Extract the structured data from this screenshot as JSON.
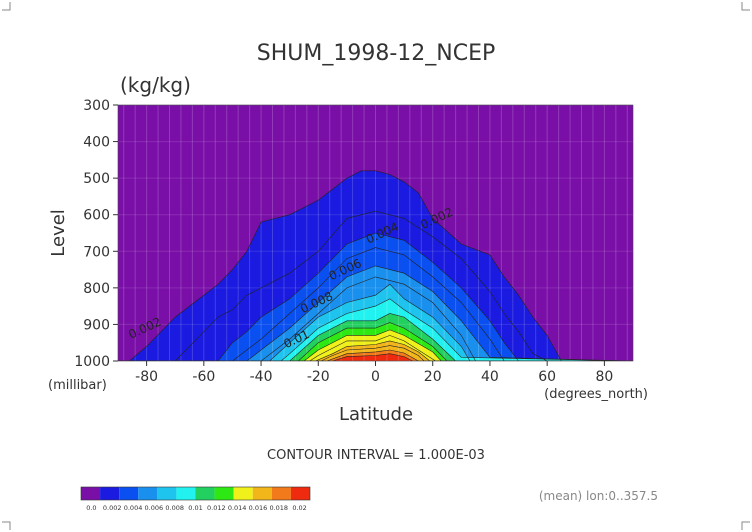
{
  "chart_data": {
    "type": "filled-contour",
    "title": "SHUM_1998-12_NCEP",
    "units": "(kg/kg)",
    "xlabel": "Latitude",
    "ylabel": "Level",
    "x_units": "(degrees_north)",
    "y_units": "(millibar)",
    "x_range": [
      -90,
      90
    ],
    "y_range": [
      1000,
      300
    ],
    "y_scale": "linear, inverted",
    "x_ticks": [
      -80,
      -60,
      -40,
      -20,
      0,
      20,
      40,
      60,
      80
    ],
    "y_ticks": [
      300,
      400,
      500,
      600,
      700,
      800,
      900,
      1000
    ],
    "contour_interval_text": "CONTOUR INTERVAL = 1.000E-03",
    "mean_note": "(mean) lon:0..357.5",
    "contour_labels": [
      {
        "text": "0.002",
        "lat": -80,
        "p": 920
      },
      {
        "text": "0.002",
        "lat": 22,
        "p": 620
      },
      {
        "text": "0.004",
        "lat": 3,
        "p": 660
      },
      {
        "text": "0.006",
        "lat": -10,
        "p": 760
      },
      {
        "text": "0.008",
        "lat": -20,
        "p": 850
      },
      {
        "text": "0.01",
        "lat": -27,
        "p": 950
      }
    ],
    "levels": [
      0.002,
      0.003,
      0.004,
      0.005,
      0.006,
      0.007,
      0.008,
      0.009,
      0.01,
      0.011,
      0.012,
      0.013,
      0.014,
      0.015,
      0.016,
      0.017,
      0.018
    ],
    "legend": {
      "boundaries": [
        "0.0",
        "0.002",
        "0.004",
        "0.006",
        "0.008",
        "0.01",
        "0.012",
        "0.014",
        "0.016",
        "0.018",
        "0.02"
      ],
      "colors": [
        "#7a0fa8",
        "#1a1ae0",
        "#0a4fef",
        "#1a90ee",
        "#1ec4ee",
        "#22f2ef",
        "#22d060",
        "#2ee813",
        "#f0f01a",
        "#f2b61a",
        "#f27a1a",
        "#ee2a0f"
      ]
    },
    "profiles": [
      {
        "threshold": 0.002,
        "lat": [
          -90,
          -86,
          -80,
          -75,
          -70,
          -65,
          -60,
          -55,
          -50,
          -45,
          -40,
          -30,
          -20,
          -15,
          -10,
          -5,
          0,
          5,
          10,
          15,
          20,
          30,
          40,
          45,
          50,
          55,
          60,
          65,
          70,
          75,
          90
        ],
        "p": [
          1000,
          1000,
          960,
          920,
          880,
          850,
          820,
          790,
          750,
          700,
          620,
          600,
          560,
          530,
          500,
          480,
          480,
          490,
          510,
          540,
          610,
          680,
          710,
          770,
          820,
          880,
          930,
          1000,
          1000,
          1000,
          1000
        ]
      },
      {
        "threshold": 0.003,
        "lat": [
          -90,
          -70,
          -65,
          -60,
          -55,
          -50,
          -45,
          -40,
          -30,
          -20,
          -10,
          0,
          10,
          20,
          30,
          40,
          45,
          50,
          55,
          60,
          90
        ],
        "p": [
          1000,
          1000,
          960,
          920,
          880,
          860,
          820,
          800,
          760,
          700,
          610,
          590,
          610,
          660,
          720,
          810,
          870,
          920,
          980,
          1000,
          1000
        ]
      },
      {
        "threshold": 0.004,
        "lat": [
          -90,
          -55,
          -50,
          -45,
          -40,
          -30,
          -20,
          -10,
          0,
          10,
          20,
          30,
          40,
          45,
          50,
          90
        ],
        "p": [
          1000,
          1000,
          950,
          920,
          880,
          830,
          760,
          680,
          650,
          670,
          730,
          800,
          890,
          950,
          1000,
          1000
        ]
      },
      {
        "threshold": 0.005,
        "lat": [
          -90,
          -50,
          -45,
          -40,
          -30,
          -20,
          -10,
          0,
          10,
          20,
          30,
          40,
          45,
          90
        ],
        "p": [
          1000,
          1000,
          970,
          940,
          870,
          800,
          720,
          690,
          710,
          770,
          840,
          940,
          1000,
          1000
        ]
      },
      {
        "threshold": 0.006,
        "lat": [
          -90,
          -45,
          -40,
          -30,
          -20,
          -10,
          0,
          10,
          20,
          30,
          40,
          90
        ],
        "p": [
          1000,
          1000,
          970,
          910,
          840,
          770,
          740,
          760,
          810,
          890,
          990,
          1000
        ]
      },
      {
        "threshold": 0.007,
        "lat": [
          -90,
          -40,
          -35,
          -30,
          -20,
          -10,
          0,
          10,
          20,
          30,
          35,
          90
        ],
        "p": [
          1000,
          1000,
          970,
          940,
          870,
          800,
          770,
          790,
          840,
          930,
          1000,
          1000
        ]
      },
      {
        "threshold": 0.008,
        "lat": [
          -90,
          -37,
          -30,
          -20,
          -10,
          0,
          5,
          10,
          20,
          30,
          33,
          90
        ],
        "p": [
          1000,
          1000,
          950,
          880,
          840,
          820,
          790,
          830,
          880,
          960,
          1000,
          1000
        ]
      },
      {
        "threshold": 0.009,
        "lat": [
          -90,
          -33,
          -30,
          -20,
          -10,
          0,
          5,
          10,
          20,
          30,
          90
        ],
        "p": [
          1000,
          1000,
          980,
          910,
          870,
          850,
          830,
          860,
          910,
          990,
          1000
        ]
      },
      {
        "threshold": 0.01,
        "lat": [
          -90,
          -30,
          -20,
          -10,
          0,
          5,
          10,
          20,
          28,
          90
        ],
        "p": [
          1000,
          1000,
          930,
          890,
          890,
          870,
          880,
          940,
          1000,
          1000
        ]
      },
      {
        "threshold": 0.011,
        "lat": [
          -90,
          -27,
          -20,
          -10,
          0,
          5,
          10,
          20,
          25,
          90
        ],
        "p": [
          1000,
          1000,
          950,
          910,
          910,
          895,
          910,
          960,
          1000,
          1000
        ]
      },
      {
        "threshold": 0.012,
        "lat": [
          -90,
          -25,
          -20,
          -10,
          0,
          5,
          10,
          20,
          23,
          90
        ],
        "p": [
          1000,
          1000,
          970,
          930,
          930,
          915,
          930,
          975,
          1000,
          1000
        ]
      },
      {
        "threshold": 0.013,
        "lat": [
          -90,
          -23,
          -20,
          -10,
          0,
          5,
          10,
          18,
          21,
          90
        ],
        "p": [
          1000,
          1000,
          985,
          945,
          945,
          930,
          945,
          985,
          1000,
          1000
        ]
      },
      {
        "threshold": 0.014,
        "lat": [
          -90,
          -21,
          -15,
          -10,
          0,
          5,
          10,
          15,
          19,
          90
        ],
        "p": [
          1000,
          1000,
          980,
          960,
          955,
          945,
          955,
          975,
          1000,
          1000
        ]
      },
      {
        "threshold": 0.015,
        "lat": [
          -90,
          -19,
          -15,
          -10,
          0,
          5,
          10,
          15,
          17,
          90
        ],
        "p": [
          1000,
          1000,
          985,
          970,
          965,
          958,
          965,
          985,
          1000,
          1000
        ]
      },
      {
        "threshold": 0.016,
        "lat": [
          -90,
          -17,
          -10,
          0,
          5,
          10,
          15,
          90
        ],
        "p": [
          1000,
          1000,
          980,
          975,
          970,
          978,
          1000,
          1000
        ]
      },
      {
        "threshold": 0.017,
        "lat": [
          -90,
          -15,
          -10,
          0,
          5,
          10,
          13,
          90
        ],
        "p": [
          1000,
          1000,
          988,
          985,
          980,
          988,
          1000,
          1000
        ]
      }
    ]
  }
}
